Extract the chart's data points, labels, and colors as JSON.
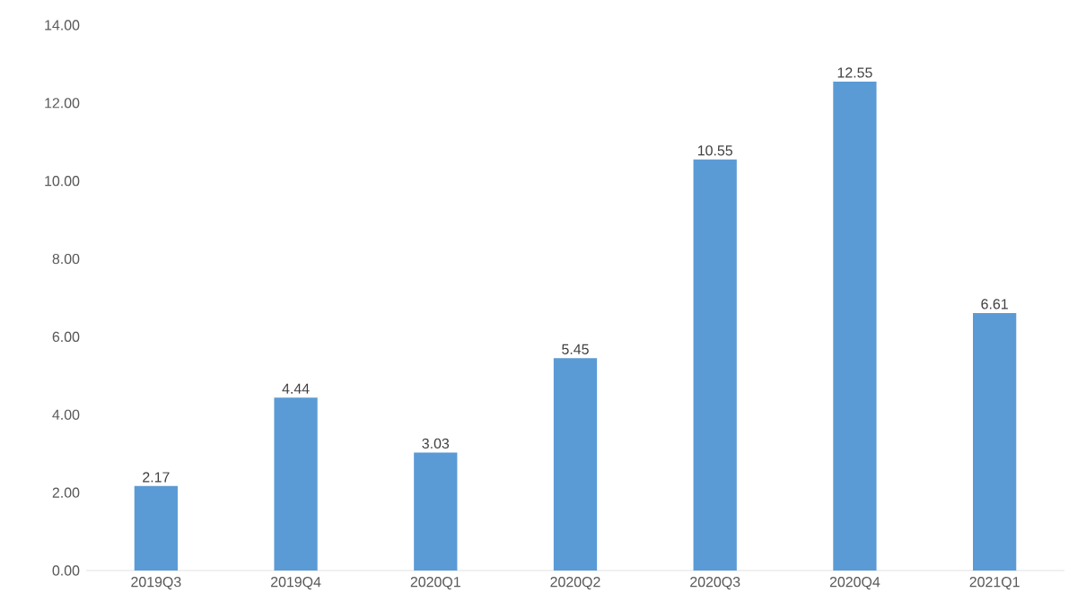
{
  "chart_data": {
    "type": "bar",
    "categories": [
      "2019Q3",
      "2019Q4",
      "2020Q1",
      "2020Q2",
      "2020Q3",
      "2020Q4",
      "2021Q1"
    ],
    "values": [
      2.17,
      4.44,
      3.03,
      5.45,
      10.55,
      12.55,
      6.61
    ],
    "color": "#5b9bd5",
    "data_labels": true,
    "ylim": [
      0,
      14
    ],
    "yticks": [
      {
        "value": 0,
        "label": "0.00"
      },
      {
        "value": 2,
        "label": "2.00"
      },
      {
        "value": 4,
        "label": "4.00"
      },
      {
        "value": 6,
        "label": "6.00"
      },
      {
        "value": 8,
        "label": "8.00"
      },
      {
        "value": 10,
        "label": "10.00"
      },
      {
        "value": 12,
        "label": "12.00"
      },
      {
        "value": 14,
        "label": "14.00"
      }
    ]
  }
}
